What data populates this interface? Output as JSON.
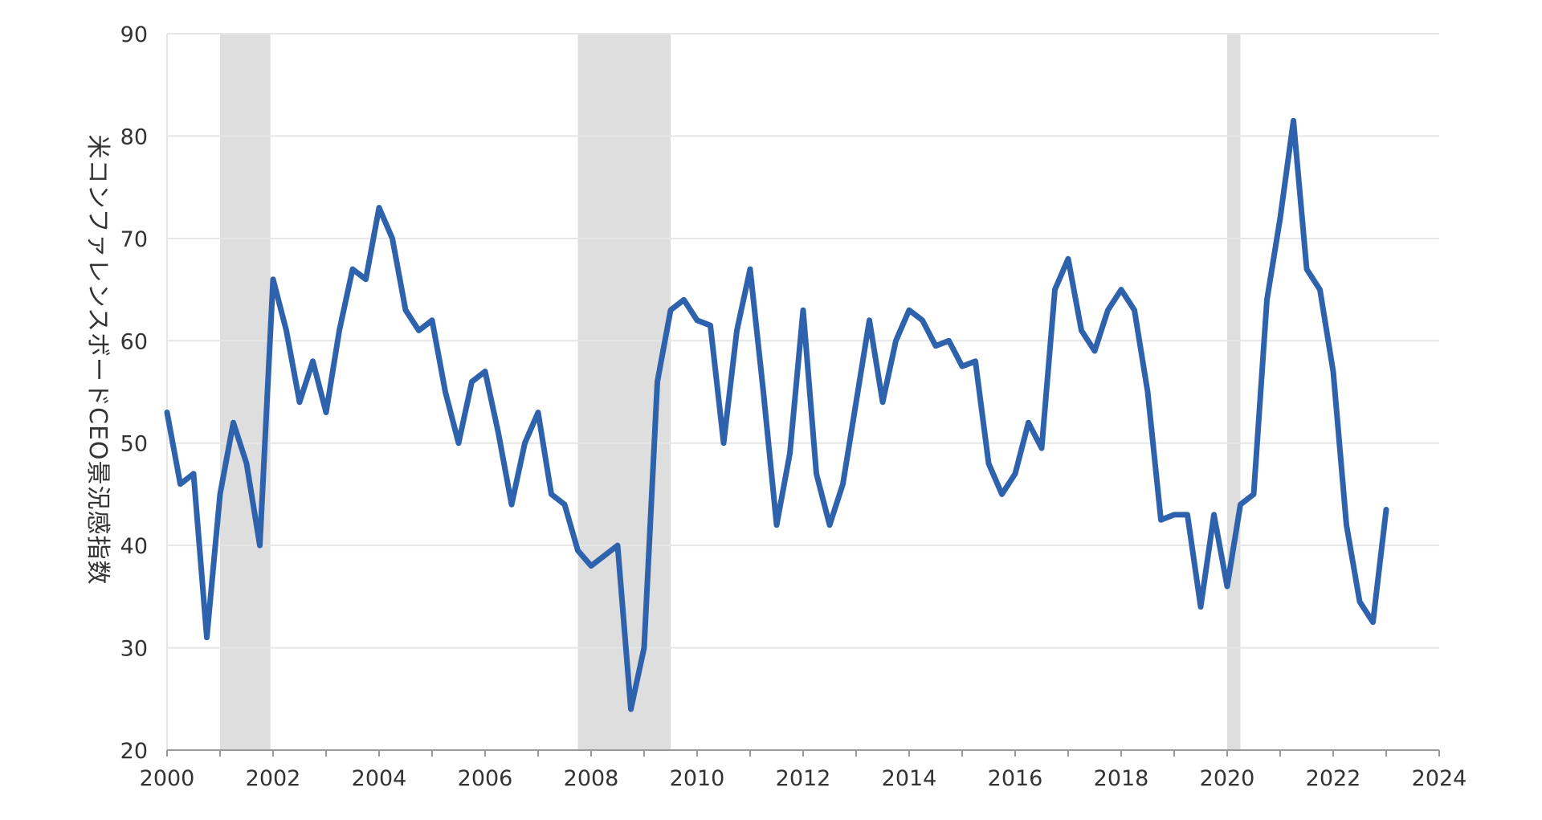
{
  "chart_data": {
    "type": "line",
    "title": "",
    "xlabel": "",
    "ylabel": "米コンファレンスボードCEO景況感指数",
    "xlim": [
      2000,
      2024
    ],
    "ylim": [
      20,
      90
    ],
    "x_ticks": [
      "2000",
      "2002",
      "2004",
      "2006",
      "2008",
      "2010",
      "2012",
      "2014",
      "2016",
      "2018",
      "2020",
      "2022",
      "2024"
    ],
    "y_ticks": [
      "20",
      "30",
      "40",
      "50",
      "60",
      "70",
      "80",
      "90"
    ],
    "grid": true,
    "legend": "none",
    "colors": {
      "line": "#2e62ad",
      "recession_band": "#dedede",
      "grid": "#e6e6e6",
      "axis": "#999999"
    },
    "recession_bands": [
      {
        "start": 2001.0,
        "end": 2001.95
      },
      {
        "start": 2007.75,
        "end": 2009.5
      },
      {
        "start": 2020.0,
        "end": 2020.25
      }
    ],
    "series": [
      {
        "x": [
          2000.0,
          2000.25,
          2000.5,
          2000.75,
          2001.0,
          2001.25,
          2001.5,
          2001.75,
          2002.0,
          2002.25,
          2002.5,
          2002.75,
          2003.0,
          2003.25,
          2003.5,
          2003.75,
          2004.0,
          2004.25,
          2004.5,
          2004.75,
          2005.0,
          2005.25,
          2005.5,
          2005.75,
          2006.0,
          2006.25,
          2006.5,
          2006.75,
          2007.0,
          2007.25,
          2007.5,
          2007.75,
          2008.0,
          2008.25,
          2008.5,
          2008.75,
          2009.0,
          2009.25,
          2009.5,
          2009.75,
          2010.0,
          2010.25,
          2010.5,
          2010.75,
          2011.0,
          2011.25,
          2011.5,
          2011.75,
          2012.0,
          2012.25,
          2012.5,
          2012.75,
          2013.0,
          2013.25,
          2013.5,
          2013.75,
          2014.0,
          2014.25,
          2014.5,
          2014.75,
          2015.0,
          2015.25,
          2015.5,
          2015.75,
          2016.0,
          2016.25,
          2016.5,
          2016.75,
          2017.0,
          2017.25,
          2017.5,
          2017.75,
          2018.0,
          2018.25,
          2018.5,
          2018.75,
          2019.0,
          2019.25,
          2019.5,
          2019.75,
          2020.0,
          2020.25,
          2020.5,
          2020.75,
          2021.0,
          2021.25,
          2021.5,
          2021.75,
          2022.0,
          2022.25,
          2022.5,
          2022.75,
          2023.0
        ],
        "values": [
          53,
          46,
          47,
          31,
          45,
          52,
          48,
          40,
          66,
          61,
          54,
          58,
          53,
          61,
          67,
          66,
          73,
          70,
          63,
          61,
          62,
          55,
          50,
          56,
          57,
          51,
          44,
          50,
          53,
          45,
          44,
          39.5,
          38,
          39,
          40,
          24,
          30,
          56,
          63,
          64,
          62,
          61.5,
          50,
          61,
          67,
          55,
          42,
          49,
          63,
          47,
          42,
          46,
          54,
          62,
          54,
          60,
          63,
          62,
          59.5,
          60,
          57.5,
          58,
          48,
          45,
          47,
          52,
          49.5,
          65,
          68,
          61,
          59,
          63,
          65,
          63,
          55,
          42.5,
          43,
          43,
          34,
          43,
          36,
          44,
          45,
          64,
          72,
          81.5,
          67,
          65,
          57,
          42,
          34.5,
          32.5,
          43.5
        ]
      }
    ]
  }
}
